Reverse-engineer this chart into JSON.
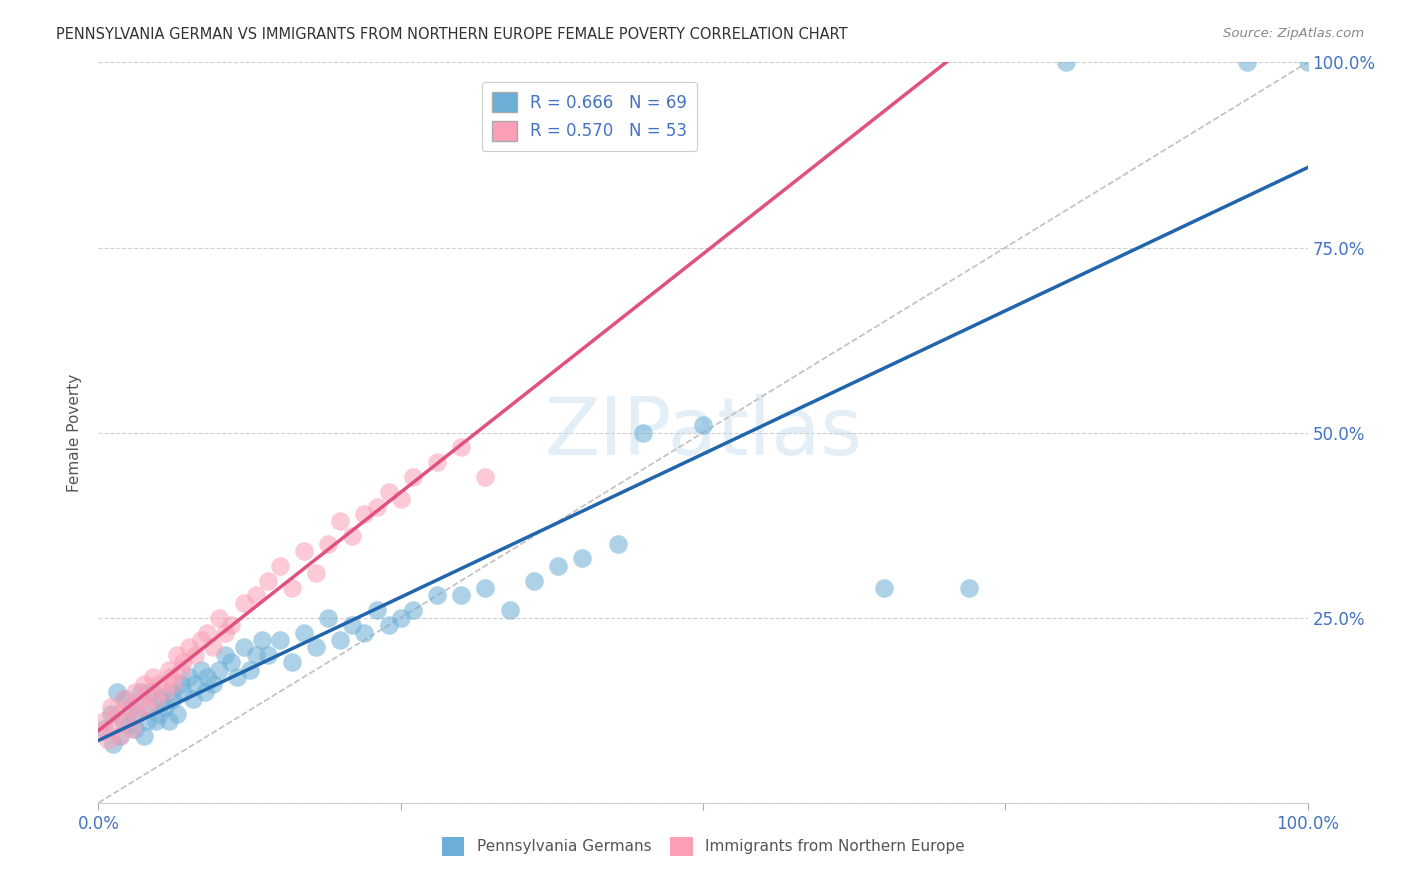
{
  "title": "PENNSYLVANIA GERMAN VS IMMIGRANTS FROM NORTHERN EUROPE FEMALE POVERTY CORRELATION CHART",
  "source": "Source: ZipAtlas.com",
  "ylabel": "Female Poverty",
  "blue_color": "#6baed6",
  "blue_line_color": "#2166ac",
  "pink_color": "#fa9fb5",
  "pink_line_color": "#e05080",
  "label1": "Pennsylvania Germans",
  "label2": "Immigrants from Northern Europe",
  "axis_color": "#4472C4",
  "legend1": "R = 0.666   N = 69",
  "legend2": "R = 0.570   N = 53",
  "blue_x": [
    0.005,
    0.01,
    0.012,
    0.015,
    0.018,
    0.02,
    0.022,
    0.025,
    0.028,
    0.03,
    0.032,
    0.035,
    0.038,
    0.04,
    0.042,
    0.045,
    0.048,
    0.05,
    0.052,
    0.055,
    0.058,
    0.06,
    0.062,
    0.065,
    0.068,
    0.07,
    0.075,
    0.078,
    0.08,
    0.085,
    0.088,
    0.09,
    0.095,
    0.1,
    0.105,
    0.11,
    0.115,
    0.12,
    0.125,
    0.13,
    0.135,
    0.14,
    0.15,
    0.16,
    0.17,
    0.18,
    0.19,
    0.2,
    0.21,
    0.22,
    0.23,
    0.24,
    0.25,
    0.26,
    0.28,
    0.3,
    0.32,
    0.34,
    0.36,
    0.38,
    0.4,
    0.43,
    0.45,
    0.5,
    0.65,
    0.72,
    0.8,
    0.95,
    1.0
  ],
  "blue_y": [
    0.1,
    0.12,
    0.08,
    0.15,
    0.09,
    0.11,
    0.14,
    0.105,
    0.13,
    0.1,
    0.12,
    0.15,
    0.09,
    0.11,
    0.13,
    0.15,
    0.11,
    0.12,
    0.14,
    0.13,
    0.11,
    0.15,
    0.14,
    0.12,
    0.16,
    0.15,
    0.17,
    0.14,
    0.16,
    0.18,
    0.15,
    0.17,
    0.16,
    0.18,
    0.2,
    0.19,
    0.17,
    0.21,
    0.18,
    0.2,
    0.22,
    0.2,
    0.22,
    0.19,
    0.23,
    0.21,
    0.25,
    0.22,
    0.24,
    0.23,
    0.26,
    0.24,
    0.25,
    0.26,
    0.28,
    0.28,
    0.29,
    0.26,
    0.3,
    0.32,
    0.33,
    0.35,
    0.5,
    0.51,
    0.29,
    0.29,
    1.0,
    1.0,
    1.0
  ],
  "pink_x": [
    0.003,
    0.005,
    0.008,
    0.01,
    0.012,
    0.015,
    0.018,
    0.02,
    0.022,
    0.025,
    0.028,
    0.03,
    0.032,
    0.035,
    0.038,
    0.04,
    0.042,
    0.045,
    0.048,
    0.05,
    0.055,
    0.058,
    0.06,
    0.062,
    0.065,
    0.068,
    0.07,
    0.075,
    0.08,
    0.085,
    0.09,
    0.095,
    0.1,
    0.105,
    0.11,
    0.12,
    0.13,
    0.14,
    0.15,
    0.16,
    0.17,
    0.18,
    0.19,
    0.2,
    0.21,
    0.22,
    0.23,
    0.24,
    0.25,
    0.26,
    0.28,
    0.3,
    0.32
  ],
  "pink_y": [
    0.095,
    0.11,
    0.085,
    0.13,
    0.1,
    0.12,
    0.09,
    0.14,
    0.11,
    0.13,
    0.1,
    0.15,
    0.12,
    0.14,
    0.16,
    0.13,
    0.15,
    0.17,
    0.14,
    0.16,
    0.15,
    0.18,
    0.17,
    0.16,
    0.2,
    0.18,
    0.19,
    0.21,
    0.2,
    0.22,
    0.23,
    0.21,
    0.25,
    0.23,
    0.24,
    0.27,
    0.28,
    0.3,
    0.32,
    0.29,
    0.34,
    0.31,
    0.35,
    0.38,
    0.36,
    0.39,
    0.4,
    0.42,
    0.41,
    0.44,
    0.46,
    0.48,
    0.44
  ]
}
